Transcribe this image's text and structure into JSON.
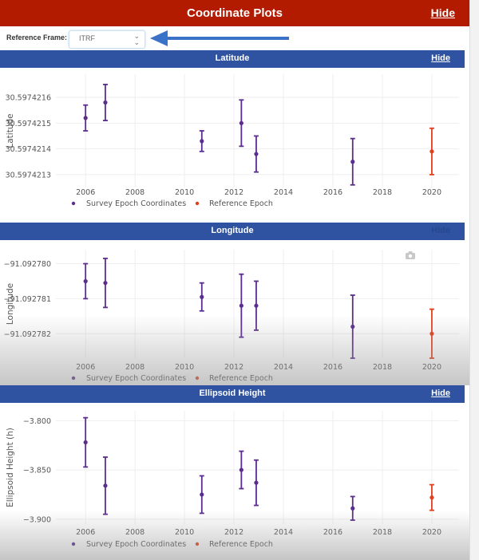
{
  "header": {
    "title": "Coordinate Plots",
    "hide_label": "Hide",
    "color": "#b31b00"
  },
  "reference_frame": {
    "label": "Reference Frame:",
    "selected": "ITRF"
  },
  "annotation": {
    "arrow_color": "#3a72c8",
    "points_to": "reference-frame-select"
  },
  "colors": {
    "survey": "#5b2d8e",
    "reference": "#e0401e",
    "section_header": "#2f53a1"
  },
  "legend": {
    "survey": "Survey Epoch Coordinates",
    "reference": "Reference Epoch"
  },
  "sections": [
    {
      "title": "Latitude",
      "hide_label": "Hide"
    },
    {
      "title": "Longitude",
      "hide_label": "Hide"
    },
    {
      "title": "Ellipsoid Height",
      "hide_label": "Hide"
    }
  ],
  "chart_data": [
    {
      "type": "scatter",
      "title": "Latitude",
      "xlabel": "",
      "ylabel": "Latitude",
      "xlim": [
        2004.8,
        2021.1
      ],
      "ylim": [
        30.59742125,
        30.59742169
      ],
      "xticks": [
        2006,
        2008,
        2010,
        2012,
        2014,
        2016,
        2018,
        2020
      ],
      "yticks": [
        30.5974213,
        30.5974214,
        30.5974215,
        30.5974216
      ],
      "ytick_labels": [
        "30.5974213",
        "30.5974214",
        "30.5974215",
        "30.5974216"
      ],
      "grid": true,
      "legend_position": "bottom",
      "series": [
        {
          "name": "Survey Epoch Coordinates",
          "x": [
            2006.0,
            2006.8,
            2010.7,
            2012.3,
            2012.9,
            2016.8
          ],
          "y": [
            30.59742152,
            30.59742158,
            30.59742143,
            30.5974215,
            30.59742138,
            30.59742135
          ],
          "err": [
            5e-08,
            7e-08,
            4e-08,
            9e-08,
            7e-08,
            9e-08
          ]
        },
        {
          "name": "Reference Epoch",
          "x": [
            2020.0
          ],
          "y": [
            30.59742139
          ],
          "err": [
            9e-08
          ]
        }
      ]
    },
    {
      "type": "scatter",
      "title": "Longitude",
      "xlabel": "",
      "ylabel": "Longitude",
      "xlim": [
        2004.8,
        2021.1
      ],
      "ylim": [
        -91.0927827,
        -91.0927796
      ],
      "xticks": [
        2006,
        2008,
        2010,
        2012,
        2014,
        2016,
        2018,
        2020
      ],
      "yticks": [
        -91.09278,
        -91.092781,
        -91.092782
      ],
      "ytick_labels": [
        "−91.092780",
        "−91.092781",
        "−91.092782"
      ],
      "grid": true,
      "legend_position": "bottom",
      "series": [
        {
          "name": "Survey Epoch Coordinates",
          "x": [
            2006.0,
            2006.8,
            2010.7,
            2012.3,
            2012.9,
            2016.8
          ],
          "y": [
            -91.0927805,
            -91.09278055,
            -91.09278095,
            -91.0927812,
            -91.0927812,
            -91.0927818
          ],
          "err": [
            5e-07,
            7e-07,
            4e-07,
            9e-07,
            7e-07,
            9e-07
          ]
        },
        {
          "name": "Reference Epoch",
          "x": [
            2020.0
          ],
          "y": [
            -91.092782
          ],
          "err": [
            7e-07
          ]
        }
      ]
    },
    {
      "type": "scatter",
      "title": "Ellipsoid Height",
      "xlabel": "",
      "ylabel": "Ellipsoid Height (h)",
      "xlim": [
        2004.8,
        2021.1
      ],
      "ylim": [
        -3.905,
        -3.79
      ],
      "xticks": [
        2006,
        2008,
        2010,
        2012,
        2014,
        2016,
        2018,
        2020
      ],
      "yticks": [
        -3.8,
        -3.85,
        -3.9
      ],
      "ytick_labels": [
        "−3.800",
        "−3.850",
        "−3.900"
      ],
      "grid": true,
      "legend_position": "bottom",
      "series": [
        {
          "name": "Survey Epoch Coordinates",
          "x": [
            2006.0,
            2006.8,
            2010.7,
            2012.3,
            2012.9,
            2016.8
          ],
          "y": [
            -3.822,
            -3.866,
            -3.875,
            -3.85,
            -3.863,
            -3.889
          ],
          "err": [
            0.025,
            0.029,
            0.019,
            0.019,
            0.023,
            0.012
          ]
        },
        {
          "name": "Reference Epoch",
          "x": [
            2020.0
          ],
          "y": [
            -3.878
          ],
          "err": [
            0.013
          ]
        }
      ]
    }
  ]
}
